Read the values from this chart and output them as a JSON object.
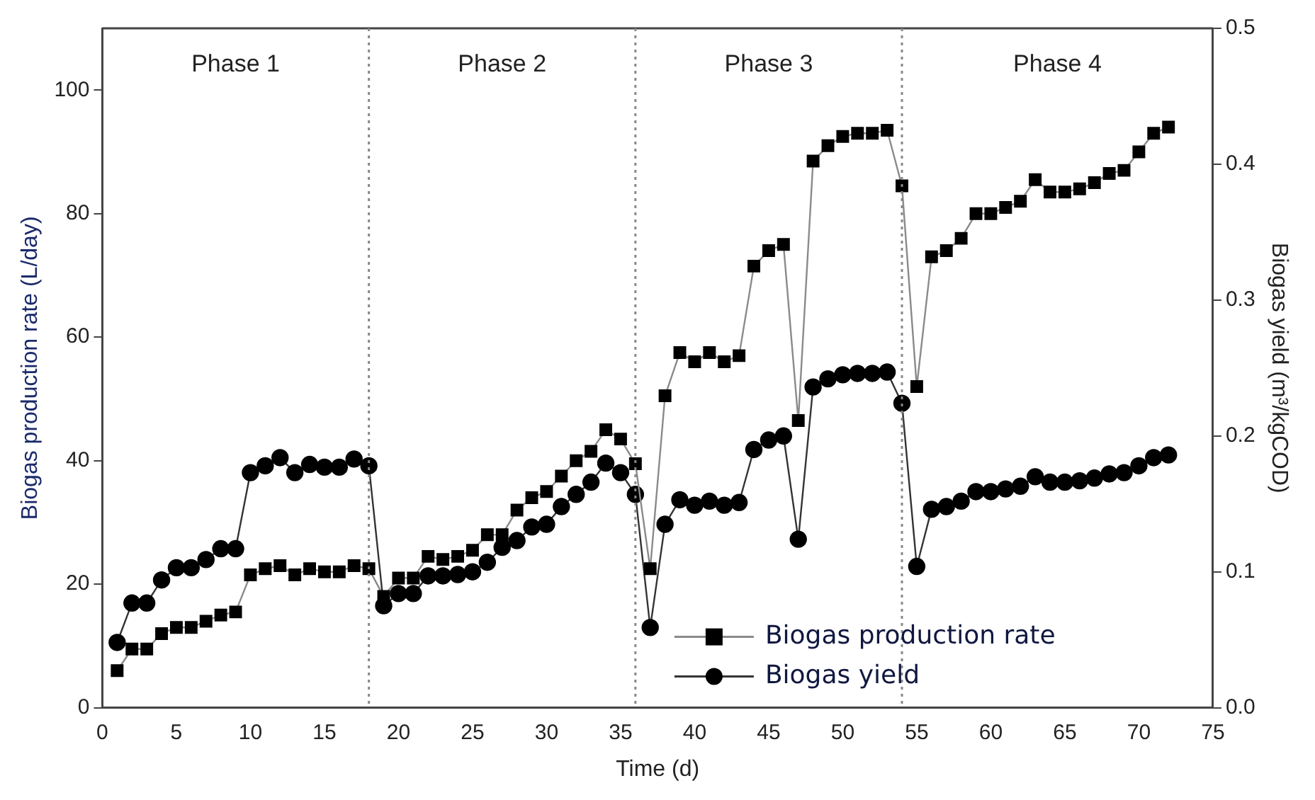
{
  "chart_data": {
    "type": "line",
    "xlabel": "Time (d)",
    "ylabel": "Biogas production rate (L/day)",
    "y2label": "Biogas yield (m³/kgCOD)",
    "xlim": [
      0,
      75
    ],
    "xticks": [
      0,
      5,
      10,
      15,
      20,
      25,
      30,
      35,
      40,
      45,
      50,
      55,
      60,
      65,
      70,
      75
    ],
    "ylim": [
      0,
      110
    ],
    "yticks": [
      0,
      20,
      40,
      60,
      80,
      100
    ],
    "y2lim": [
      0,
      0.5
    ],
    "y2ticks": [
      {
        "value": 0,
        "label": "0.0"
      },
      0.1,
      0.2,
      0.3,
      0.4,
      0.5
    ],
    "x": [
      1,
      2,
      3,
      4,
      5,
      6,
      7,
      8,
      9,
      10,
      11,
      12,
      13,
      14,
      15,
      16,
      17,
      18,
      19,
      20,
      21,
      22,
      23,
      24,
      25,
      26,
      27,
      28,
      29,
      30,
      31,
      32,
      33,
      34,
      35,
      36,
      37,
      38,
      39,
      40,
      41,
      42,
      43,
      44,
      45,
      46,
      47,
      48,
      49,
      50,
      51,
      52,
      53,
      54,
      55,
      56,
      57,
      58,
      59,
      60,
      61,
      62,
      63,
      64,
      65,
      66,
      67,
      68,
      69,
      70,
      71,
      72
    ],
    "series": [
      {
        "name": "Biogas production rate",
        "color": "#000000",
        "marker": "square",
        "values": [
          6,
          9.5,
          9.5,
          12,
          13,
          13,
          14,
          15,
          15.5,
          21.5,
          22.5,
          23,
          21.5,
          22.5,
          22,
          22,
          23,
          22.5,
          18,
          21,
          21,
          24.5,
          24,
          24.5,
          25.5,
          28,
          28,
          32,
          34,
          35,
          37.5,
          40,
          41.5,
          45,
          43.5,
          39.5,
          22.5,
          50.5,
          57.5,
          56,
          57.5,
          56,
          57,
          71.5,
          74,
          75,
          46.5,
          88.5,
          91,
          92.5,
          93,
          93,
          93.5,
          84.5,
          52,
          73,
          74,
          76,
          80,
          80,
          81,
          82,
          85.5,
          83.5,
          83.5,
          84,
          85,
          86.5,
          87,
          90,
          93,
          94
        ]
      },
      {
        "name": "Biogas yield",
        "color": "#000000",
        "marker": "circle",
        "axis": "y2",
        "values": [
          0.048,
          0.077,
          0.077,
          0.094,
          0.103,
          0.103,
          0.109,
          0.117,
          0.117,
          0.173,
          0.178,
          0.184,
          0.173,
          0.179,
          0.177,
          0.177,
          0.183,
          0.178,
          0.075,
          0.084,
          0.084,
          0.097,
          0.097,
          0.098,
          0.1,
          0.107,
          0.118,
          0.123,
          0.133,
          0.135,
          0.148,
          0.157,
          0.166,
          0.18,
          0.173,
          0.157,
          0.059,
          0.135,
          0.153,
          0.149,
          0.152,
          0.149,
          0.151,
          0.19,
          0.197,
          0.2,
          0.124,
          0.236,
          0.242,
          0.245,
          0.246,
          0.246,
          0.247,
          0.224,
          0.104,
          0.146,
          0.148,
          0.152,
          0.159,
          0.159,
          0.161,
          0.163,
          0.17,
          0.166,
          0.166,
          0.167,
          0.169,
          0.172,
          0.173,
          0.178,
          0.184,
          0.186
        ]
      }
    ],
    "ref_lines": [
      {
        "axis": "x",
        "value": 18,
        "line_style": "dotted",
        "color": "#888888"
      },
      {
        "axis": "x",
        "value": 36,
        "line_style": "dotted",
        "color": "#888888"
      },
      {
        "axis": "x",
        "value": 54,
        "line_style": "dotted",
        "color": "#888888"
      }
    ],
    "annotations": [
      "Phase 1",
      "Phase 2",
      "Phase 3",
      "Phase 4"
    ],
    "legend": "bottom right",
    "line_style": "solid",
    "grid": false
  }
}
